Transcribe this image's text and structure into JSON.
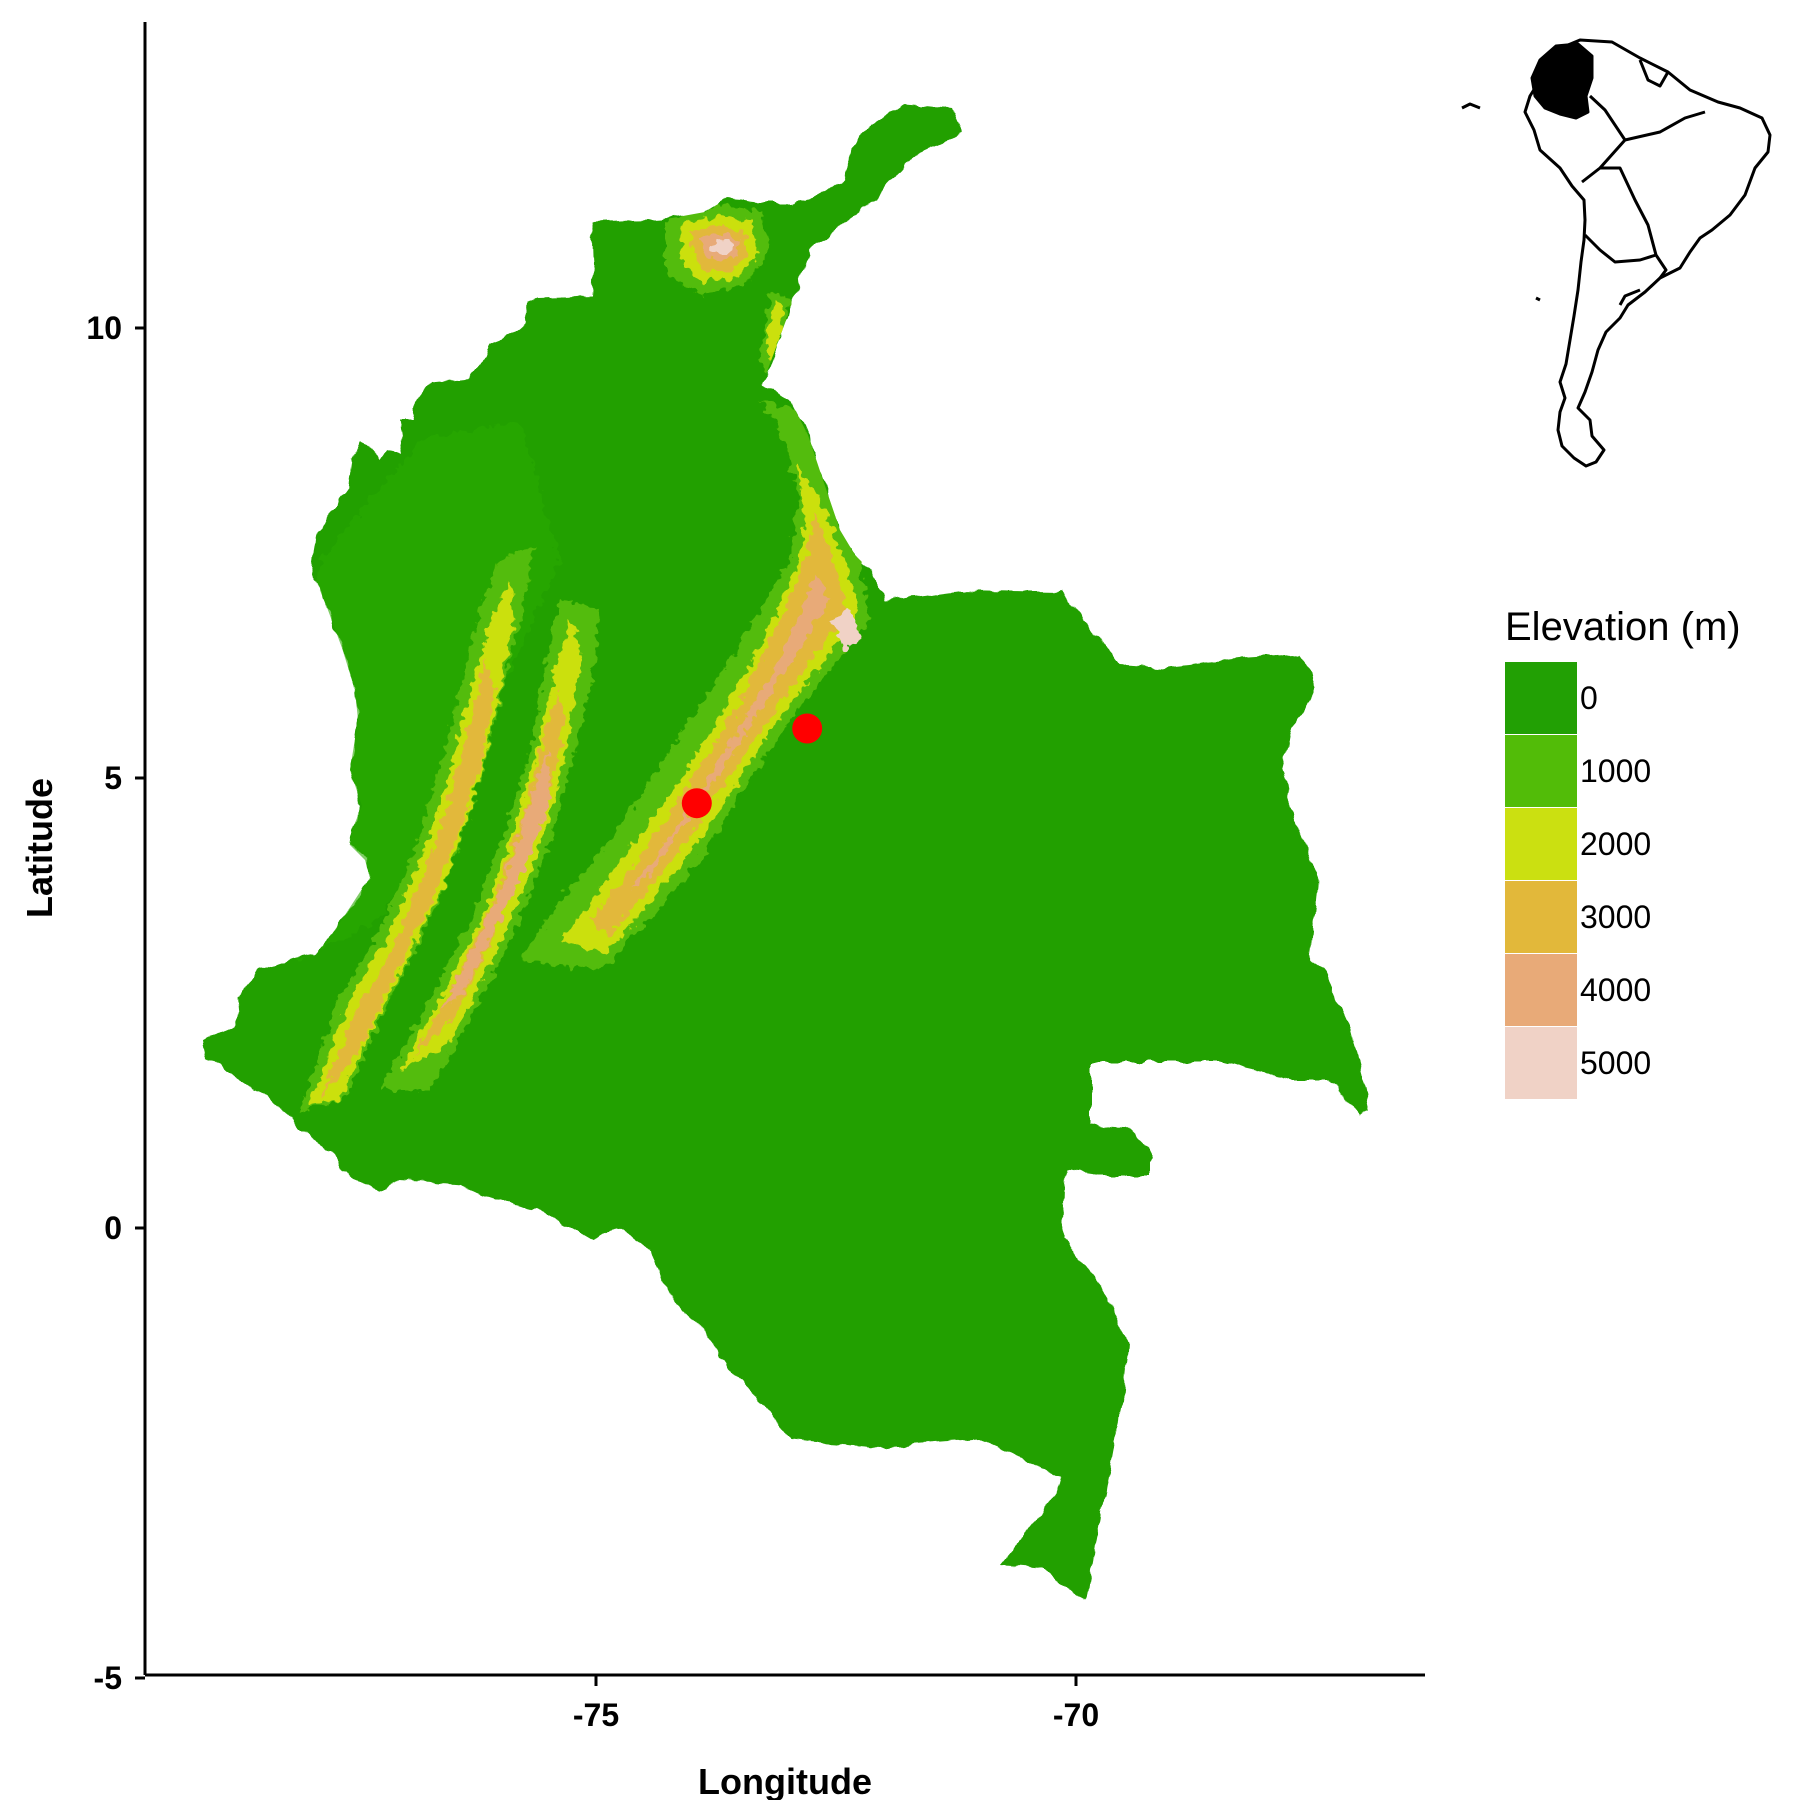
{
  "chart_data": {
    "type": "map",
    "xlabel": "Longitude",
    "ylabel": "Latitude",
    "x_ticks": [
      -75,
      -70
    ],
    "y_ticks": [
      -5,
      0,
      5,
      10
    ],
    "x_tick_labels": [
      "-75",
      "-70"
    ],
    "y_tick_labels": [
      "-5",
      "0",
      "5",
      "10"
    ],
    "xlim": [
      -79.6,
      -66.3
    ],
    "ylim": [
      -5.1,
      13.2
    ],
    "grid": false,
    "points": [
      {
        "lon": -72.8,
        "lat": 5.55,
        "color": "#ff0000"
      },
      {
        "lon": -73.95,
        "lat": 4.72,
        "color": "#ff0000"
      }
    ],
    "legend": {
      "title": "Elevation (m)",
      "placement": "right",
      "entries": [
        {
          "label": "0",
          "color": "#22a004"
        },
        {
          "label": "1000",
          "color": "#52bc08"
        },
        {
          "label": "2000",
          "color": "#cbe011"
        },
        {
          "label": "3000",
          "color": "#e2b83a"
        },
        {
          "label": "4000",
          "color": "#e8aa78"
        },
        {
          "label": "5000",
          "color": "#f0d2c6"
        }
      ]
    },
    "inset": {
      "description": "South America outline with Colombia filled",
      "fill": "#000000"
    }
  }
}
